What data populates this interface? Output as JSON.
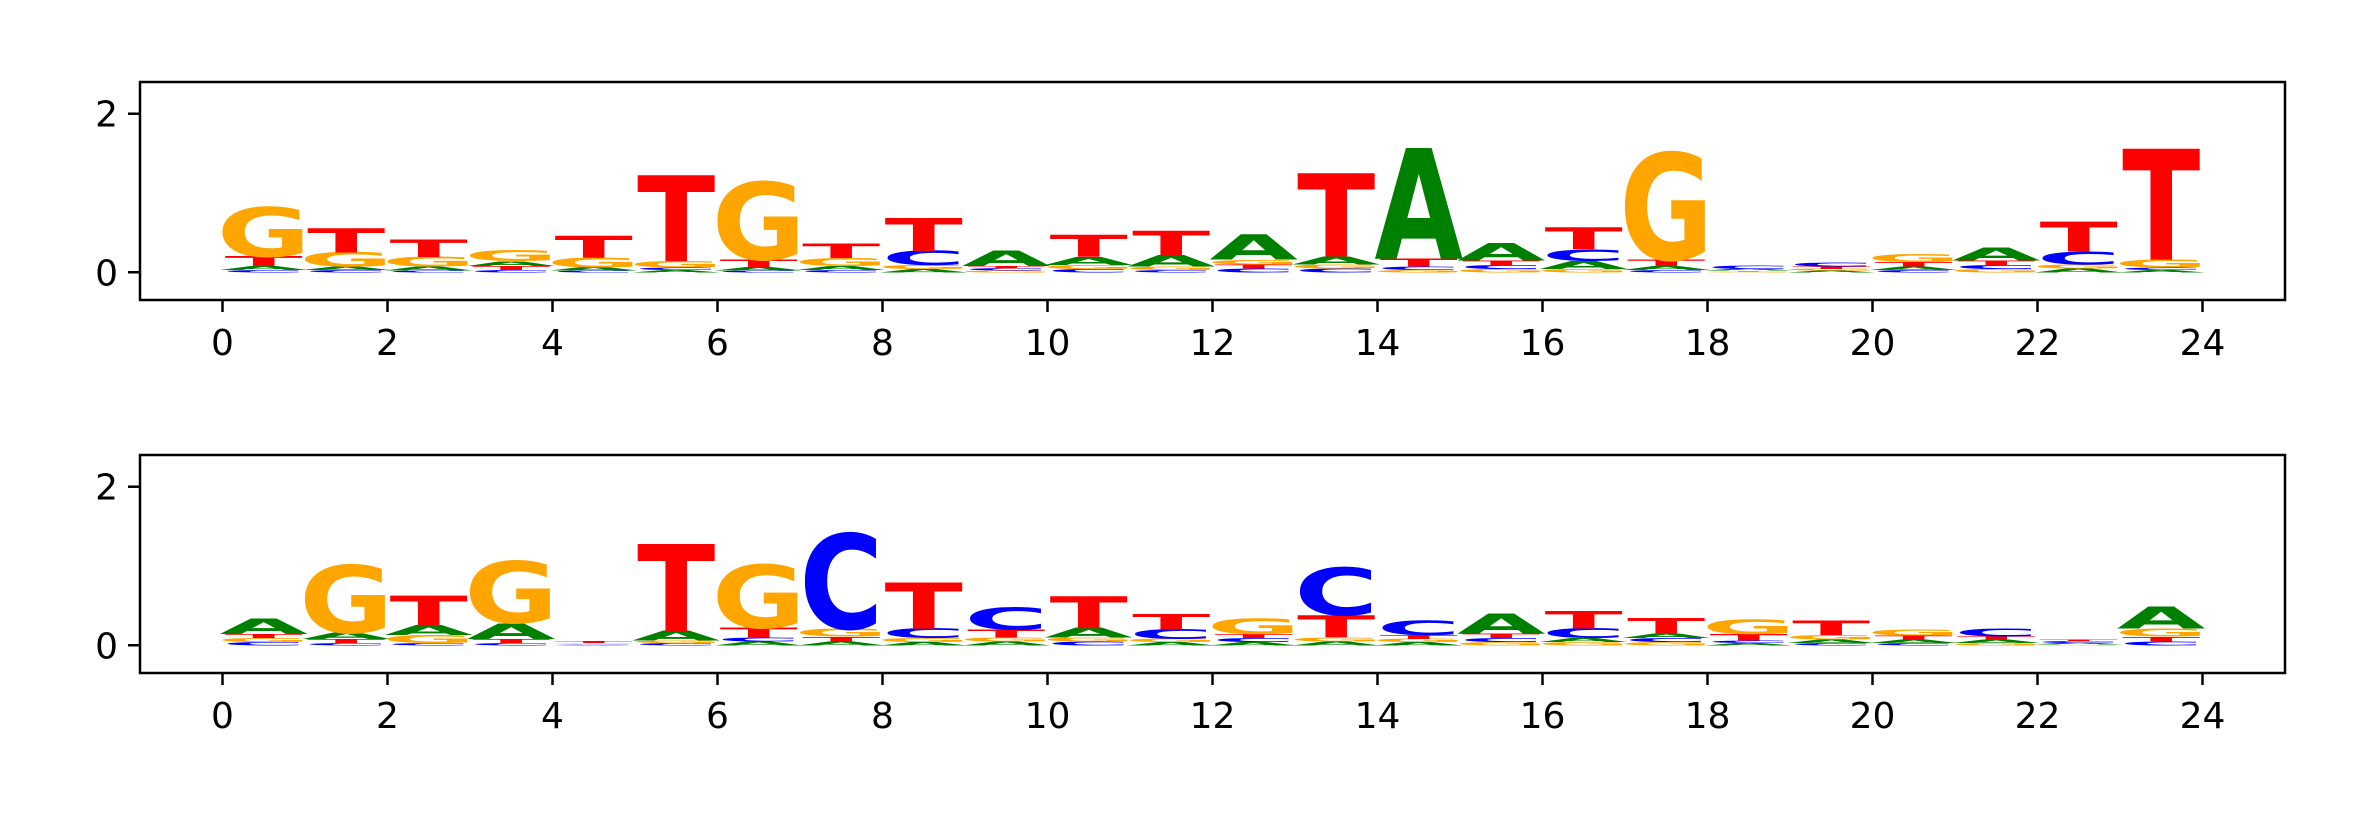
{
  "colors": {
    "A": "#008000",
    "C": "#0000ff",
    "G": "#ffa500",
    "T": "#ff0000"
  },
  "chart_data": [
    {
      "type": "sequence-logo",
      "xlim": [
        -1,
        25
      ],
      "ylim": [
        -0.35,
        2.4
      ],
      "xticks": [
        "0",
        "2",
        "4",
        "6",
        "8",
        "10",
        "12",
        "14",
        "16",
        "18",
        "20",
        "22",
        "24"
      ],
      "yticks": [
        "0",
        "2"
      ],
      "positions": [
        {
          "A": 0.05,
          "C": 0.03,
          "G": 0.62,
          "T": 0.12
        },
        {
          "A": 0.04,
          "C": 0.03,
          "G": 0.18,
          "T": 0.3
        },
        {
          "A": 0.05,
          "C": 0.02,
          "G": 0.12,
          "T": 0.22
        },
        {
          "A": 0.06,
          "C": 0.03,
          "G": 0.14,
          "T": 0.05
        },
        {
          "A": 0.04,
          "C": 0.02,
          "G": 0.12,
          "T": 0.28
        },
        {
          "A": 0.03,
          "C": 0.03,
          "G": 0.08,
          "T": 1.08
        },
        {
          "A": 0.04,
          "C": 0.02,
          "G": 0.98,
          "T": 0.1
        },
        {
          "A": 0.05,
          "C": 0.03,
          "G": 0.1,
          "T": 0.18
        },
        {
          "A": 0.04,
          "C": 0.18,
          "G": 0.05,
          "T": 0.42
        },
        {
          "A": 0.2,
          "C": 0.03,
          "G": 0.02,
          "T": 0.03
        },
        {
          "A": 0.1,
          "C": 0.04,
          "G": 0.05,
          "T": 0.28
        },
        {
          "A": 0.15,
          "C": 0.03,
          "G": 0.04,
          "T": 0.3
        },
        {
          "A": 0.32,
          "C": 0.05,
          "G": 0.06,
          "T": 0.05
        },
        {
          "A": 0.1,
          "C": 0.05,
          "G": 0.05,
          "T": 1.05
        },
        {
          "A": 1.4,
          "C": 0.04,
          "G": 0.03,
          "T": 0.1
        },
        {
          "A": 0.22,
          "C": 0.05,
          "G": 0.04,
          "T": 0.06
        },
        {
          "A": 0.1,
          "C": 0.15,
          "G": 0.04,
          "T": 0.28
        },
        {
          "A": 0.05,
          "C": 0.03,
          "G": 1.35,
          "T": 0.08
        },
        {
          "A": 0.02,
          "C": 0.04,
          "G": 0.01,
          "T": 0.01
        },
        {
          "A": 0.02,
          "C": 0.05,
          "G": 0.02,
          "T": 0.03
        },
        {
          "A": 0.04,
          "C": 0.03,
          "G": 0.1,
          "T": 0.06
        },
        {
          "A": 0.16,
          "C": 0.05,
          "G": 0.04,
          "T": 0.06
        },
        {
          "A": 0.05,
          "C": 0.16,
          "G": 0.05,
          "T": 0.38
        },
        {
          "A": 0.03,
          "C": 0.03,
          "G": 0.1,
          "T": 1.4
        }
      ]
    },
    {
      "type": "sequence-logo",
      "xlim": [
        -1,
        25
      ],
      "ylim": [
        -0.35,
        2.4
      ],
      "xticks": [
        "0",
        "2",
        "4",
        "6",
        "8",
        "10",
        "12",
        "14",
        "16",
        "18",
        "20",
        "22",
        "24"
      ],
      "yticks": [
        "0",
        "2"
      ],
      "positions": [
        {
          "A": 0.2,
          "C": 0.04,
          "G": 0.05,
          "T": 0.05
        },
        {
          "A": 0.08,
          "C": 0.03,
          "G": 0.85,
          "T": 0.05
        },
        {
          "A": 0.12,
          "C": 0.03,
          "G": 0.1,
          "T": 0.38
        },
        {
          "A": 0.2,
          "C": 0.03,
          "G": 0.78,
          "T": 0.05
        },
        {
          "A": 0.01,
          "C": 0.01,
          "G": 0.01,
          "T": 0.02
        },
        {
          "A": 0.12,
          "C": 0.03,
          "G": 0.03,
          "T": 1.1
        },
        {
          "A": 0.05,
          "C": 0.05,
          "G": 0.8,
          "T": 0.12
        },
        {
          "A": 0.05,
          "C": 1.2,
          "G": 0.1,
          "T": 0.06
        },
        {
          "A": 0.04,
          "C": 0.12,
          "G": 0.05,
          "T": 0.58
        },
        {
          "A": 0.05,
          "C": 0.28,
          "G": 0.05,
          "T": 0.1
        },
        {
          "A": 0.12,
          "C": 0.05,
          "G": 0.05,
          "T": 0.4
        },
        {
          "A": 0.04,
          "C": 0.12,
          "G": 0.04,
          "T": 0.2
        },
        {
          "A": 0.04,
          "C": 0.05,
          "G": 0.2,
          "T": 0.05
        },
        {
          "A": 0.05,
          "C": 0.6,
          "G": 0.05,
          "T": 0.28
        },
        {
          "A": 0.04,
          "C": 0.18,
          "G": 0.04,
          "T": 0.05
        },
        {
          "A": 0.25,
          "C": 0.05,
          "G": 0.04,
          "T": 0.06
        },
        {
          "A": 0.05,
          "C": 0.12,
          "G": 0.04,
          "T": 0.22
        },
        {
          "A": 0.06,
          "C": 0.05,
          "G": 0.04,
          "T": 0.2
        },
        {
          "A": 0.03,
          "C": 0.03,
          "G": 0.18,
          "T": 0.08
        },
        {
          "A": 0.04,
          "C": 0.03,
          "G": 0.06,
          "T": 0.18
        },
        {
          "A": 0.04,
          "C": 0.03,
          "G": 0.07,
          "T": 0.05
        },
        {
          "A": 0.04,
          "C": 0.1,
          "G": 0.03,
          "T": 0.04
        },
        {
          "A": 0.02,
          "C": 0.02,
          "G": 0.01,
          "T": 0.02
        },
        {
          "A": 0.28,
          "C": 0.05,
          "G": 0.1,
          "T": 0.06
        }
      ]
    }
  ]
}
